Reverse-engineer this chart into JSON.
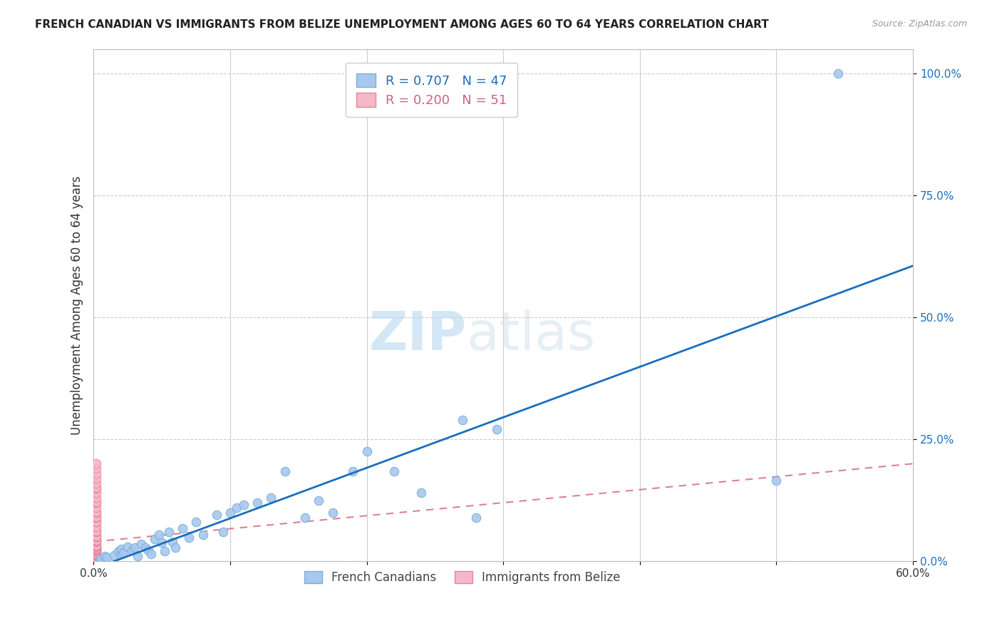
{
  "title": "FRENCH CANADIAN VS IMMIGRANTS FROM BELIZE UNEMPLOYMENT AMONG AGES 60 TO 64 YEARS CORRELATION CHART",
  "source": "Source: ZipAtlas.com",
  "xlabel": "",
  "ylabel": "Unemployment Among Ages 60 to 64 years",
  "xlim": [
    0,
    0.6
  ],
  "ylim": [
    0,
    1.05
  ],
  "xticks": [
    0.0,
    0.1,
    0.2,
    0.3,
    0.4,
    0.5,
    0.6
  ],
  "xtick_labels": [
    "0.0%",
    "",
    "",
    "",
    "",
    "",
    "60.0%"
  ],
  "ytick_positions": [
    0.0,
    0.25,
    0.5,
    0.75,
    1.0
  ],
  "ytick_labels": [
    "0.0%",
    "25.0%",
    "50.0%",
    "75.0%",
    "100.0%"
  ],
  "legend_R_blue": "0.707",
  "legend_N_blue": "47",
  "legend_R_pink": "0.200",
  "legend_N_pink": "51",
  "blue_color": "#a8c8f0",
  "blue_edge_color": "#7aafd4",
  "blue_line_color": "#1a6fbd",
  "pink_color": "#f5b8c8",
  "pink_edge_color": "#e8849c",
  "pink_line_color": "#d46080",
  "marker_size": 80,
  "blue_scatter_x": [
    0.005,
    0.008,
    0.01,
    0.015,
    0.018,
    0.02,
    0.02,
    0.022,
    0.025,
    0.028,
    0.03,
    0.032,
    0.035,
    0.038,
    0.04,
    0.042,
    0.045,
    0.048,
    0.05,
    0.052,
    0.055,
    0.058,
    0.06,
    0.065,
    0.07,
    0.075,
    0.08,
    0.09,
    0.095,
    0.1,
    0.105,
    0.11,
    0.12,
    0.13,
    0.14,
    0.155,
    0.165,
    0.175,
    0.19,
    0.2,
    0.22,
    0.24,
    0.27,
    0.28,
    0.295,
    0.5,
    0.545
  ],
  "blue_scatter_y": [
    0.005,
    0.01,
    0.008,
    0.012,
    0.02,
    0.015,
    0.025,
    0.018,
    0.03,
    0.022,
    0.028,
    0.01,
    0.035,
    0.028,
    0.022,
    0.015,
    0.045,
    0.055,
    0.038,
    0.02,
    0.06,
    0.04,
    0.028,
    0.068,
    0.048,
    0.08,
    0.055,
    0.095,
    0.06,
    0.1,
    0.11,
    0.115,
    0.12,
    0.13,
    0.185,
    0.09,
    0.125,
    0.1,
    0.185,
    0.225,
    0.185,
    0.14,
    0.29,
    0.09,
    0.27,
    0.165,
    1.0
  ],
  "pink_scatter_x": [
    0.002,
    0.002,
    0.002,
    0.002,
    0.002,
    0.002,
    0.002,
    0.002,
    0.002,
    0.002,
    0.002,
    0.002,
    0.002,
    0.002,
    0.002,
    0.002,
    0.002,
    0.002,
    0.002,
    0.002,
    0.002,
    0.002,
    0.002,
    0.002,
    0.002,
    0.002,
    0.002,
    0.002,
    0.002,
    0.002,
    0.002,
    0.002,
    0.002,
    0.002,
    0.002,
    0.002,
    0.002,
    0.002,
    0.002,
    0.002,
    0.002,
    0.002,
    0.002,
    0.002,
    0.002,
    0.002,
    0.002,
    0.002,
    0.002,
    0.002,
    0.002
  ],
  "pink_scatter_y": [
    0.002,
    0.003,
    0.004,
    0.005,
    0.006,
    0.01,
    0.012,
    0.013,
    0.015,
    0.016,
    0.02,
    0.021,
    0.022,
    0.023,
    0.024,
    0.025,
    0.026,
    0.03,
    0.031,
    0.032,
    0.033,
    0.04,
    0.041,
    0.042,
    0.043,
    0.05,
    0.051,
    0.052,
    0.06,
    0.061,
    0.062,
    0.07,
    0.071,
    0.08,
    0.081,
    0.09,
    0.091,
    0.1,
    0.101,
    0.11,
    0.12,
    0.121,
    0.13,
    0.14,
    0.15,
    0.151,
    0.16,
    0.17,
    0.18,
    0.19,
    0.2
  ],
  "pink_line_x": [
    0.0,
    0.6
  ],
  "pink_line_y": [
    0.04,
    0.2
  ],
  "watermark_zip": "ZIP",
  "watermark_atlas": "atlas",
  "background_color": "#ffffff",
  "grid_color": "#cccccc"
}
